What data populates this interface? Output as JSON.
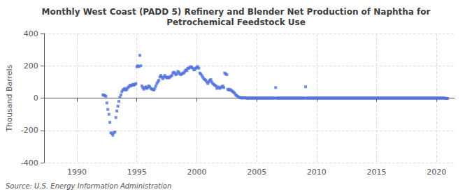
{
  "chart_data": {
    "type": "scatter",
    "title": "Monthly West Coast (PADD 5) Refinery and Blender Net Production of Naphtha for\nPetrochemical Feedstock Use",
    "ylabel": "Thousand Barrels",
    "source": "Source: U.S. Energy Information Administration",
    "marker": "square",
    "grid": true,
    "xlim": [
      1987.25,
      2021.5
    ],
    "xticks": [
      1990,
      1995,
      2000,
      2005,
      2010,
      2015,
      2020
    ],
    "ylim": [
      -400,
      400
    ],
    "yticks": [
      -400,
      -200,
      0,
      200,
      400
    ],
    "x": [
      1992.17,
      1992.25,
      1992.33,
      1992.42,
      1992.5,
      1992.58,
      1992.67,
      1992.75,
      1992.83,
      1992.92,
      1993.0,
      1993.08,
      1993.17,
      1993.25,
      1993.33,
      1993.42,
      1993.5,
      1993.58,
      1993.67,
      1993.75,
      1993.83,
      1993.92,
      1994.0,
      1994.08,
      1994.17,
      1994.25,
      1994.33,
      1994.42,
      1994.5,
      1994.58,
      1994.67,
      1994.75,
      1994.83,
      1994.92,
      1995.0,
      1995.08,
      1995.17,
      1995.25,
      1995.33,
      1995.42,
      1995.5,
      1995.58,
      1995.67,
      1995.75,
      1995.83,
      1995.92,
      1996.0,
      1996.08,
      1996.17,
      1996.25,
      1996.33,
      1996.42,
      1996.5,
      1996.58,
      1996.67,
      1996.75,
      1996.83,
      1996.92,
      1997.0,
      1997.08,
      1997.17,
      1997.25,
      1997.33,
      1997.42,
      1997.5,
      1997.58,
      1997.67,
      1997.75,
      1997.83,
      1997.92,
      1998.0,
      1998.08,
      1998.17,
      1998.25,
      1998.33,
      1998.42,
      1998.5,
      1998.58,
      1998.67,
      1998.75,
      1998.83,
      1998.92,
      1999.0,
      1999.08,
      1999.17,
      1999.25,
      1999.33,
      1999.42,
      1999.5,
      1999.58,
      1999.67,
      1999.75,
      1999.83,
      1999.92,
      2000.0,
      2000.08,
      2000.17,
      2000.25,
      2000.33,
      2000.42,
      2000.5,
      2000.58,
      2000.67,
      2000.75,
      2000.83,
      2000.92,
      2001.0,
      2001.08,
      2001.17,
      2001.25,
      2001.33,
      2001.42,
      2001.5,
      2001.58,
      2001.67,
      2001.75,
      2001.83,
      2001.92,
      2002.0,
      2002.08,
      2002.17,
      2002.25,
      2002.33,
      2002.42,
      2002.5,
      2002.58,
      2002.67,
      2002.75,
      2002.83,
      2002.92,
      2003.0,
      2003.08,
      2003.17,
      2003.25,
      2003.33,
      2003.42,
      2003.5,
      2003.58,
      2003.67,
      2003.75,
      2003.83,
      2003.92,
      2004.0,
      2004.08,
      2004.17,
      2004.25,
      2004.33,
      2004.42,
      2004.5,
      2004.58,
      2004.67,
      2004.75,
      2004.83,
      2004.92,
      2005.0,
      2005.08,
      2005.17,
      2005.25,
      2005.33,
      2005.42,
      2005.5,
      2005.58,
      2005.67,
      2005.75,
      2005.83,
      2005.92,
      2006.0,
      2006.08,
      2006.17,
      2006.25,
      2006.33,
      2006.42,
      2006.5,
      2006.58,
      2006.67,
      2006.75,
      2006.83,
      2006.92,
      2007.0,
      2007.08,
      2007.17,
      2007.25,
      2007.33,
      2007.42,
      2007.5,
      2007.58,
      2007.67,
      2007.75,
      2007.83,
      2007.92,
      2008.0,
      2008.08,
      2008.17,
      2008.25,
      2008.33,
      2008.42,
      2008.5,
      2008.58,
      2008.67,
      2008.75,
      2008.83,
      2008.92,
      2009.0,
      2009.08,
      2009.17,
      2009.25,
      2009.33,
      2009.42,
      2009.5,
      2009.58,
      2009.67,
      2009.75,
      2009.83,
      2009.92,
      2010.0,
      2010.08,
      2010.17,
      2010.25,
      2010.33,
      2010.42,
      2010.5,
      2010.58,
      2010.67,
      2010.75,
      2010.83,
      2010.92,
      2011.0,
      2011.08,
      2011.17,
      2011.25,
      2011.33,
      2011.42,
      2011.5,
      2011.58,
      2011.67,
      2011.75,
      2011.83,
      2011.92,
      2012.0,
      2012.08,
      2012.17,
      2012.25,
      2012.33,
      2012.42,
      2012.5,
      2012.58,
      2012.67,
      2012.75,
      2012.83,
      2012.92,
      2013.0,
      2013.08,
      2013.17,
      2013.25,
      2013.33,
      2013.42,
      2013.5,
      2013.58,
      2013.67,
      2013.75,
      2013.83,
      2013.92,
      2014.0,
      2014.08,
      2014.17,
      2014.25,
      2014.33,
      2014.42,
      2014.5,
      2014.58,
      2014.67,
      2014.75,
      2014.83,
      2014.92,
      2015.0,
      2015.08,
      2015.17,
      2015.25,
      2015.33,
      2015.42,
      2015.5,
      2015.58,
      2015.67,
      2015.75,
      2015.83,
      2015.92,
      2016.0,
      2016.08,
      2016.17,
      2016.25,
      2016.33,
      2016.42,
      2016.5,
      2016.58,
      2016.67,
      2016.75,
      2016.83,
      2016.92,
      2017.0,
      2017.08,
      2017.17,
      2017.25,
      2017.33,
      2017.42,
      2017.5,
      2017.58,
      2017.67,
      2017.75,
      2017.83,
      2017.92,
      2018.0,
      2018.08,
      2018.17,
      2018.25,
      2018.33,
      2018.42,
      2018.5,
      2018.58,
      2018.67,
      2018.75,
      2018.83,
      2018.92,
      2019.0,
      2019.08,
      2019.17,
      2019.25,
      2019.33,
      2019.42,
      2019.5,
      2019.58,
      2019.67,
      2019.75,
      2019.83,
      2019.92,
      2020.0,
      2020.08,
      2020.17,
      2020.25,
      2020.33,
      2020.42,
      2020.5,
      2020.58,
      2020.67,
      2020.75,
      2020.83,
      2020.92
    ],
    "values": [
      20,
      18,
      15,
      12,
      -30,
      -70,
      -100,
      -150,
      -215,
      -220,
      -230,
      -215,
      -210,
      -120,
      -80,
      -50,
      -20,
      5,
      20,
      40,
      50,
      55,
      60,
      50,
      55,
      65,
      70,
      80,
      75,
      80,
      85,
      80,
      85,
      90,
      195,
      200,
      195,
      265,
      200,
      75,
      65,
      55,
      65,
      70,
      60,
      65,
      75,
      70,
      60,
      55,
      55,
      50,
      60,
      75,
      90,
      100,
      110,
      130,
      140,
      130,
      120,
      130,
      140,
      130,
      125,
      130,
      125,
      130,
      135,
      140,
      155,
      160,
      155,
      145,
      150,
      165,
      160,
      150,
      145,
      150,
      155,
      155,
      165,
      175,
      170,
      185,
      185,
      190,
      195,
      190,
      185,
      175,
      175,
      185,
      190,
      195,
      185,
      155,
      150,
      140,
      130,
      120,
      115,
      110,
      100,
      90,
      100,
      110,
      115,
      100,
      90,
      85,
      80,
      75,
      60,
      70,
      65,
      60,
      65,
      70,
      75,
      65,
      155,
      150,
      145,
      55,
      50,
      55,
      50,
      45,
      40,
      35,
      30,
      20,
      15,
      10,
      5,
      3,
      2,
      0,
      2,
      1,
      2,
      1,
      0,
      -1,
      0,
      1,
      0,
      0,
      0,
      0,
      0,
      0,
      0,
      0,
      0,
      0,
      0,
      0,
      0,
      0,
      0,
      0,
      0,
      0,
      0,
      0,
      0,
      0,
      0,
      0,
      0,
      65,
      0,
      0,
      0,
      0,
      0,
      0,
      0,
      0,
      0,
      0,
      0,
      0,
      0,
      0,
      0,
      0,
      0,
      0,
      0,
      0,
      0,
      0,
      0,
      0,
      0,
      0,
      0,
      0,
      0,
      70,
      0,
      0,
      0,
      0,
      0,
      0,
      0,
      0,
      0,
      0,
      0,
      0,
      0,
      0,
      0,
      0,
      0,
      0,
      0,
      0,
      0,
      0,
      0,
      0,
      0,
      0,
      0,
      0,
      0,
      0,
      0,
      0,
      0,
      0,
      0,
      0,
      0,
      0,
      0,
      0,
      0,
      0,
      0,
      0,
      0,
      0,
      0,
      0,
      0,
      0,
      0,
      0,
      0,
      0,
      0,
      0,
      0,
      0,
      0,
      0,
      0,
      0,
      0,
      0,
      0,
      0,
      0,
      0,
      0,
      0,
      0,
      0,
      0,
      0,
      0,
      0,
      0,
      0,
      0,
      0,
      0,
      0,
      0,
      0,
      0,
      0,
      0,
      0,
      0,
      0,
      0,
      0,
      0,
      0,
      0,
      0,
      0,
      0,
      0,
      0,
      0,
      0,
      0,
      0,
      0,
      0,
      0,
      0,
      0,
      0,
      0,
      0,
      0,
      0,
      0,
      0,
      0,
      0,
      0,
      0,
      0,
      0,
      0,
      0,
      0,
      0,
      0,
      0,
      0,
      0,
      0,
      0,
      0,
      0,
      0,
      0,
      0,
      0,
      0,
      -2,
      -2,
      -2
    ]
  }
}
